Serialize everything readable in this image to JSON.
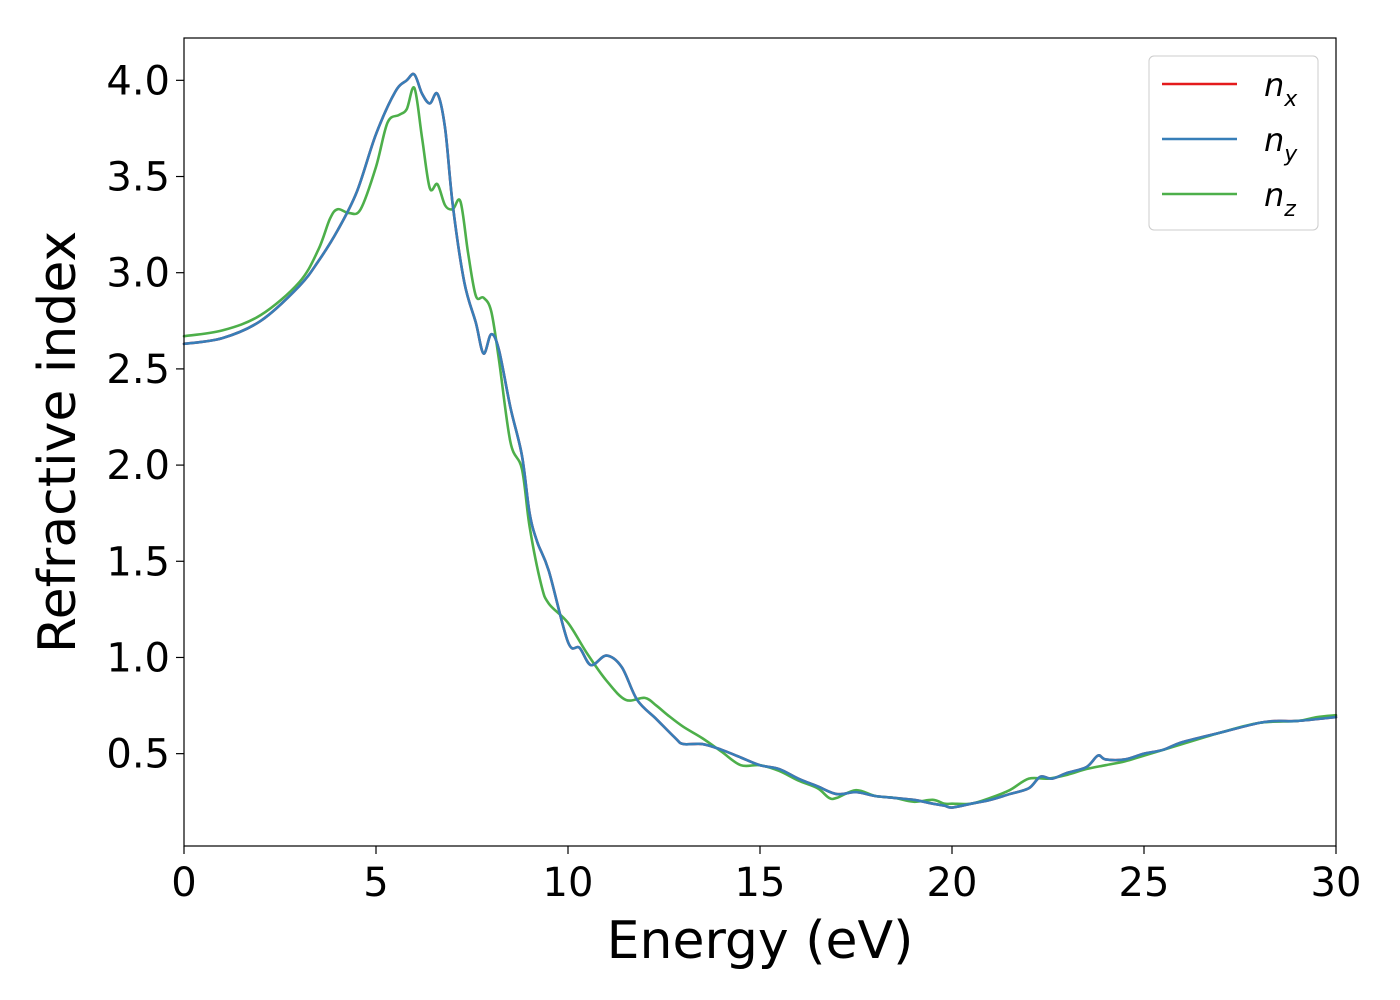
{
  "chart_data": {
    "type": "line",
    "xlabel": "Energy (eV)",
    "ylabel": "Refractive index",
    "xlim": [
      0,
      30
    ],
    "ylim": [
      0.02,
      4.22
    ],
    "xticks": [
      0,
      5,
      10,
      15,
      20,
      25,
      30
    ],
    "yticks": [
      0.5,
      1.0,
      1.5,
      2.0,
      2.5,
      3.0,
      3.5,
      4.0
    ],
    "xtick_labels": [
      "0",
      "5",
      "10",
      "15",
      "20",
      "25",
      "30"
    ],
    "ytick_labels": [
      "0.5",
      "1.0",
      "1.5",
      "2.0",
      "2.5",
      "3.0",
      "3.5",
      "4.0"
    ],
    "grid": false,
    "legend_position": "top-right",
    "series": [
      {
        "name": "n_x",
        "label_main": "n",
        "label_sub": "x",
        "color": "#e41a1c",
        "x": [
          0,
          1,
          2,
          3,
          3.5,
          4,
          4.5,
          5,
          5.5,
          5.8,
          6.0,
          6.2,
          6.4,
          6.6,
          6.8,
          7.0,
          7.3,
          7.6,
          7.8,
          8.0,
          8.2,
          8.5,
          8.8,
          9.0,
          9.2,
          9.5,
          10.0,
          10.3,
          10.6,
          11.0,
          11.4,
          11.8,
          12.3,
          12.8,
          13.0,
          13.5,
          14.0,
          14.5,
          15.0,
          15.5,
          16.0,
          16.5,
          17.0,
          17.5,
          18.0,
          18.5,
          19.0,
          19.5,
          19.8,
          20.0,
          20.5,
          21.0,
          21.5,
          22.0,
          22.3,
          22.6,
          23.0,
          23.5,
          23.8,
          24.0,
          24.5,
          25.0,
          25.5,
          26.0,
          27.0,
          28.0,
          28.5,
          29.0,
          30.0
        ],
        "y": [
          2.63,
          2.66,
          2.75,
          2.93,
          3.06,
          3.22,
          3.42,
          3.72,
          3.94,
          4.0,
          4.03,
          3.93,
          3.88,
          3.93,
          3.75,
          3.35,
          2.95,
          2.74,
          2.58,
          2.68,
          2.6,
          2.3,
          2.05,
          1.75,
          1.6,
          1.45,
          1.08,
          1.05,
          0.96,
          1.01,
          0.95,
          0.78,
          0.68,
          0.58,
          0.55,
          0.55,
          0.52,
          0.48,
          0.44,
          0.42,
          0.37,
          0.33,
          0.29,
          0.3,
          0.28,
          0.27,
          0.26,
          0.24,
          0.23,
          0.22,
          0.24,
          0.26,
          0.29,
          0.32,
          0.38,
          0.37,
          0.4,
          0.43,
          0.49,
          0.47,
          0.47,
          0.5,
          0.52,
          0.56,
          0.61,
          0.66,
          0.67,
          0.67,
          0.69
        ]
      },
      {
        "name": "n_y",
        "label_main": "n",
        "label_sub": "y",
        "color": "#377eb8",
        "x": [
          0,
          1,
          2,
          3,
          3.5,
          4,
          4.5,
          5,
          5.5,
          5.8,
          6.0,
          6.2,
          6.4,
          6.6,
          6.8,
          7.0,
          7.3,
          7.6,
          7.8,
          8.0,
          8.2,
          8.5,
          8.8,
          9.0,
          9.2,
          9.5,
          10.0,
          10.3,
          10.6,
          11.0,
          11.4,
          11.8,
          12.3,
          12.8,
          13.0,
          13.5,
          14.0,
          14.5,
          15.0,
          15.5,
          16.0,
          16.5,
          17.0,
          17.5,
          18.0,
          18.5,
          19.0,
          19.5,
          19.8,
          20.0,
          20.5,
          21.0,
          21.5,
          22.0,
          22.3,
          22.6,
          23.0,
          23.5,
          23.8,
          24.0,
          24.5,
          25.0,
          25.5,
          26.0,
          27.0,
          28.0,
          28.5,
          29.0,
          30.0
        ],
        "y": [
          2.63,
          2.66,
          2.75,
          2.93,
          3.06,
          3.22,
          3.42,
          3.72,
          3.94,
          4.0,
          4.03,
          3.93,
          3.88,
          3.93,
          3.75,
          3.35,
          2.95,
          2.74,
          2.58,
          2.68,
          2.6,
          2.3,
          2.05,
          1.75,
          1.6,
          1.45,
          1.08,
          1.05,
          0.96,
          1.01,
          0.95,
          0.78,
          0.68,
          0.58,
          0.55,
          0.55,
          0.52,
          0.48,
          0.44,
          0.42,
          0.37,
          0.33,
          0.29,
          0.3,
          0.28,
          0.27,
          0.26,
          0.24,
          0.23,
          0.22,
          0.24,
          0.26,
          0.29,
          0.32,
          0.38,
          0.37,
          0.4,
          0.43,
          0.49,
          0.47,
          0.47,
          0.5,
          0.52,
          0.56,
          0.61,
          0.66,
          0.67,
          0.67,
          0.69
        ]
      },
      {
        "name": "n_z",
        "label_main": "n",
        "label_sub": "z",
        "color": "#4daf4a",
        "x": [
          0,
          1,
          2,
          3,
          3.5,
          3.8,
          4.0,
          4.3,
          4.6,
          5.0,
          5.3,
          5.6,
          5.8,
          6.0,
          6.2,
          6.4,
          6.6,
          6.8,
          7.0,
          7.2,
          7.4,
          7.6,
          7.8,
          8.0,
          8.2,
          8.5,
          8.8,
          9.0,
          9.3,
          9.5,
          10.0,
          10.5,
          11.0,
          11.5,
          12.0,
          12.3,
          12.6,
          13.0,
          13.5,
          14.0,
          14.5,
          15.0,
          15.5,
          16.0,
          16.5,
          16.8,
          17.0,
          17.5,
          18.0,
          18.5,
          19.0,
          19.5,
          19.8,
          20.0,
          20.5,
          21.0,
          21.5,
          22.0,
          22.5,
          23.0,
          23.5,
          24.0,
          24.5,
          25.0,
          26.0,
          27.0,
          28.0,
          29.0,
          29.5,
          30.0
        ],
        "y": [
          2.67,
          2.7,
          2.78,
          2.95,
          3.12,
          3.28,
          3.33,
          3.31,
          3.33,
          3.55,
          3.78,
          3.82,
          3.85,
          3.96,
          3.7,
          3.44,
          3.46,
          3.35,
          3.33,
          3.37,
          3.1,
          2.88,
          2.87,
          2.8,
          2.55,
          2.12,
          1.98,
          1.68,
          1.38,
          1.28,
          1.18,
          1.02,
          0.88,
          0.78,
          0.79,
          0.75,
          0.7,
          0.64,
          0.58,
          0.51,
          0.44,
          0.44,
          0.41,
          0.36,
          0.32,
          0.27,
          0.27,
          0.31,
          0.28,
          0.27,
          0.25,
          0.26,
          0.24,
          0.24,
          0.24,
          0.27,
          0.31,
          0.37,
          0.37,
          0.39,
          0.42,
          0.44,
          0.46,
          0.49,
          0.55,
          0.61,
          0.66,
          0.67,
          0.69,
          0.7
        ]
      }
    ]
  }
}
